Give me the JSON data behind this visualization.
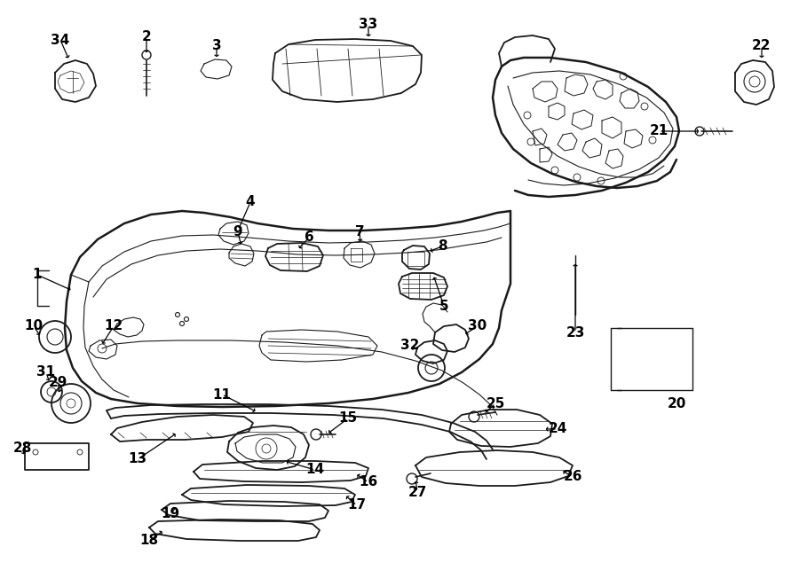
{
  "background_color": "#ffffff",
  "line_color": "#1a1a1a",
  "fig_width": 9.0,
  "fig_height": 6.61,
  "dpi": 100,
  "label_fontsize": 11,
  "arrow_lw": 0.8,
  "part_lw": 1.3,
  "main_lw": 1.8
}
